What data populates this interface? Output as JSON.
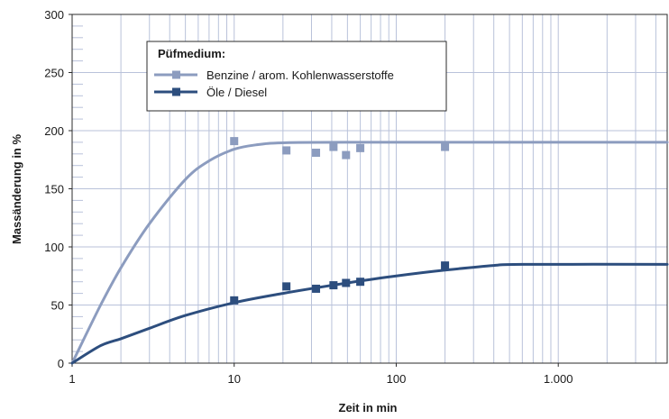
{
  "chart_data": {
    "type": "line",
    "xlabel": "Zeit in min",
    "ylabel": "Massänderung in %",
    "x_scale": "log",
    "xlim": [
      1,
      4700
    ],
    "ylim": [
      0,
      300
    ],
    "x_ticks": [
      {
        "value": 1,
        "label": "1"
      },
      {
        "value": 10,
        "label": "10"
      },
      {
        "value": 100,
        "label": "100"
      },
      {
        "value": 1000,
        "label": "1.000"
      }
    ],
    "y_ticks": [
      {
        "value": 0,
        "label": "0"
      },
      {
        "value": 50,
        "label": "50"
      },
      {
        "value": 100,
        "label": "100"
      },
      {
        "value": 150,
        "label": "150"
      },
      {
        "value": 200,
        "label": "200"
      },
      {
        "value": 250,
        "label": "250"
      },
      {
        "value": 300,
        "label": "300"
      }
    ],
    "grid": true,
    "legend": {
      "title": "Püfmedium:",
      "placement": "top-left"
    },
    "series": [
      {
        "name": "Benzine / arom. Kohlenwasserstoffe",
        "color": "#8c9cbf",
        "points": [
          [
            10,
            191
          ],
          [
            21,
            183
          ],
          [
            32,
            181
          ],
          [
            41,
            186
          ],
          [
            49,
            179
          ],
          [
            60,
            185
          ],
          [
            200,
            186
          ]
        ],
        "curve": [
          [
            1,
            0
          ],
          [
            1.5,
            50
          ],
          [
            2,
            82
          ],
          [
            3,
            120
          ],
          [
            5,
            158
          ],
          [
            7,
            174
          ],
          [
            10,
            184
          ],
          [
            14,
            188
          ],
          [
            20,
            189.5
          ],
          [
            50,
            190
          ],
          [
            4700,
            190
          ]
        ]
      },
      {
        "name": "Öle / Diesel",
        "color": "#2d4e7e",
        "points": [
          [
            10,
            54
          ],
          [
            21,
            66
          ],
          [
            32,
            64
          ],
          [
            41,
            67
          ],
          [
            49,
            69
          ],
          [
            60,
            70
          ],
          [
            200,
            84
          ]
        ],
        "curve": [
          [
            1,
            0
          ],
          [
            1.5,
            15
          ],
          [
            2,
            21
          ],
          [
            3,
            30
          ],
          [
            5,
            41
          ],
          [
            10,
            52
          ],
          [
            20,
            60
          ],
          [
            50,
            69
          ],
          [
            100,
            75
          ],
          [
            200,
            80
          ],
          [
            400,
            84
          ],
          [
            600,
            85
          ],
          [
            4700,
            85
          ]
        ]
      }
    ]
  }
}
